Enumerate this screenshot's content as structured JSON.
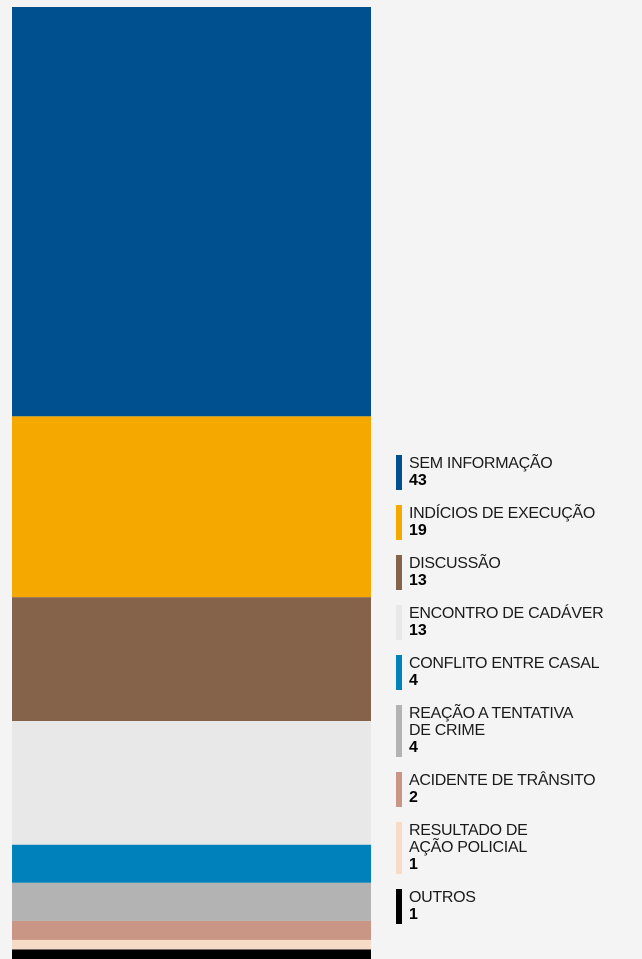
{
  "chart_data": {
    "type": "stacked-bar",
    "categories": [
      "SEM INFORMAÇÃO",
      "INDÍCIOS DE EXECUÇÃO",
      "DISCUSSÃO",
      "ENCONTRO DE CADÁVER",
      "CONFLITO ENTRE CASAL",
      "REAÇÃO A TENTATIVA DE CRIME",
      "ACIDENTE DE TRÂNSITO",
      "RESULTADO DE AÇÃO POLICIAL",
      "OUTROS"
    ],
    "values": [
      43,
      19,
      13,
      13,
      4,
      4,
      2,
      1,
      1
    ],
    "colors": [
      "#004f8e",
      "#f5a800",
      "#85634b",
      "#e8e8e8",
      "#0081bb",
      "#b3b3b3",
      "#c99584",
      "#f6dcc6",
      "#000000"
    ]
  }
}
